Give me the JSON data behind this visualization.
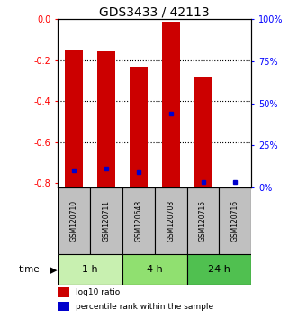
{
  "title": "GDS3433 / 42113",
  "samples": [
    "GSM120710",
    "GSM120711",
    "GSM120648",
    "GSM120708",
    "GSM120715",
    "GSM120716"
  ],
  "groups": [
    {
      "label": "1 h",
      "indices": [
        0,
        1
      ],
      "color": "#c8f0b0"
    },
    {
      "label": "4 h",
      "indices": [
        2,
        3
      ],
      "color": "#90e070"
    },
    {
      "label": "24 h",
      "indices": [
        4,
        5
      ],
      "color": "#50c050"
    }
  ],
  "log10_ratio": [
    -0.15,
    -0.155,
    -0.23,
    -0.01,
    -0.285,
    -0.82
  ],
  "percentile_rank": [
    0.1,
    0.11,
    0.09,
    0.44,
    0.03,
    0.03
  ],
  "ylim_left": [
    -0.82,
    0.0
  ],
  "yticks_left": [
    0.0,
    -0.2,
    -0.4,
    -0.6,
    -0.8
  ],
  "yticks_right": [
    0,
    25,
    50,
    75,
    100
  ],
  "red_bar_color": "#cc0000",
  "blue_dot_color": "#0000cc",
  "group_box_color": "#c0c0c0",
  "legend_red_label": "log10 ratio",
  "legend_blue_label": "percentile rank within the sample",
  "time_label": "time",
  "title_fontsize": 10,
  "axis_fontsize": 7
}
